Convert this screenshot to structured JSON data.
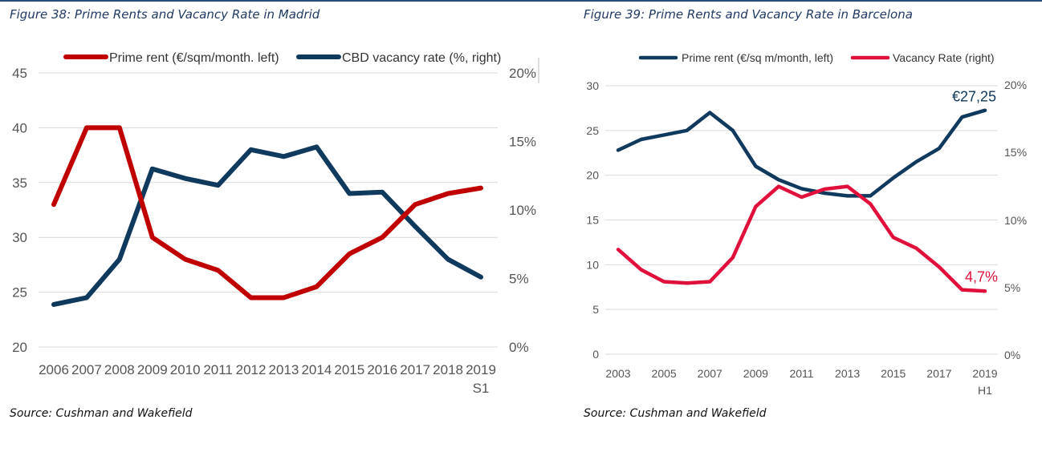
{
  "colors": {
    "madrid_rent": "#c00000",
    "madrid_vacancy": "#10395e",
    "bcn_rent": "#10395e",
    "bcn_vacancy": "#e0103a",
    "grid": "#d9d9d9",
    "title": "#1f3a64"
  },
  "figures": {
    "madrid": {
      "title": "Figure 38: Prime Rents and Vacancy Rate in Madrid",
      "source": "Source: Cushman and Wakefield"
    },
    "barcelona": {
      "title": "Figure 39: Prime Rents and Vacancy Rate in Barcelona",
      "source": "Source: Cushman and Wakefield"
    }
  },
  "chart_data": [
    {
      "type": "line",
      "title": "Figure 38: Prime Rents and Vacancy Rate in Madrid",
      "categories": [
        "2006",
        "2007",
        "2008",
        "2009",
        "2010",
        "2011",
        "2012",
        "2013",
        "2014",
        "2015",
        "2016",
        "2017",
        "2018",
        "2019"
      ],
      "category_sublabels": [
        "",
        "",
        "",
        "",
        "",
        "",
        "",
        "",
        "",
        "",
        "",
        "",
        "",
        "S1"
      ],
      "y_left": {
        "ylim": [
          20,
          45
        ],
        "ticks": [
          "20",
          "25",
          "30",
          "35",
          "40",
          "45"
        ]
      },
      "y_right": {
        "ylim": [
          0,
          20
        ],
        "ticks": [
          "0%",
          "5%",
          "10%",
          "15%",
          "20%"
        ]
      },
      "grid": true,
      "legend_position": "top",
      "series": [
        {
          "name": "Prime rent (€/sqm/month. left)",
          "axis": "left",
          "values": [
            33,
            40,
            40,
            30,
            28,
            27,
            24.5,
            24.5,
            25.5,
            28.5,
            30,
            33,
            34,
            34.5
          ]
        },
        {
          "name": "CBD vacancy rate (%, right)",
          "axis": "right",
          "values": [
            3.1,
            3.6,
            6.4,
            13,
            12.3,
            11.8,
            14.4,
            13.9,
            14.6,
            11.2,
            11.3,
            8.8,
            6.4,
            5.1
          ]
        }
      ]
    },
    {
      "type": "line",
      "title": "Figure 39: Prime Rents and Vacancy Rate in Barcelona",
      "categories": [
        "2003",
        "2004",
        "2005",
        "2006",
        "2007",
        "2008",
        "2009",
        "2010",
        "2011",
        "2012",
        "2013",
        "2014",
        "2015",
        "2016",
        "2017",
        "2018",
        "2019"
      ],
      "tick_labels": [
        "2003",
        "",
        "2005",
        "",
        "2007",
        "",
        "2009",
        "",
        "2011",
        "",
        "2013",
        "",
        "2015",
        "",
        "2017",
        "",
        "2019"
      ],
      "category_sublabels": [
        "",
        "",
        "",
        "",
        "",
        "",
        "",
        "",
        "",
        "",
        "",
        "",
        "",
        "",
        "",
        "",
        "H1"
      ],
      "y_left": {
        "ylim": [
          0,
          30
        ],
        "ticks": [
          "0",
          "5",
          "10",
          "15",
          "20",
          "25",
          "30"
        ]
      },
      "y_right": {
        "ylim": [
          0,
          20
        ],
        "ticks": [
          "0%",
          "5%",
          "10%",
          "15%",
          "20%"
        ]
      },
      "grid": true,
      "legend_position": "top",
      "series": [
        {
          "name": "Prime rent (€/sq m/month, left)",
          "axis": "left",
          "values": [
            22.8,
            24,
            24.5,
            25,
            27,
            25,
            21,
            19.5,
            18.5,
            18,
            17.7,
            17.7,
            19.7,
            21.5,
            23,
            26.5,
            27.25
          ]
        },
        {
          "name": "Vacancy Rate (right)",
          "axis": "right",
          "values": [
            7.8,
            6.3,
            5.4,
            5.3,
            5.4,
            7.2,
            11,
            12.5,
            11.7,
            12.3,
            12.5,
            11.2,
            8.7,
            7.9,
            6.5,
            4.8,
            4.7
          ]
        }
      ],
      "annotations": [
        {
          "text": "€27,25",
          "series": 0,
          "index": 16
        },
        {
          "text": "4,7%",
          "series": 1,
          "index": 16
        }
      ]
    }
  ]
}
